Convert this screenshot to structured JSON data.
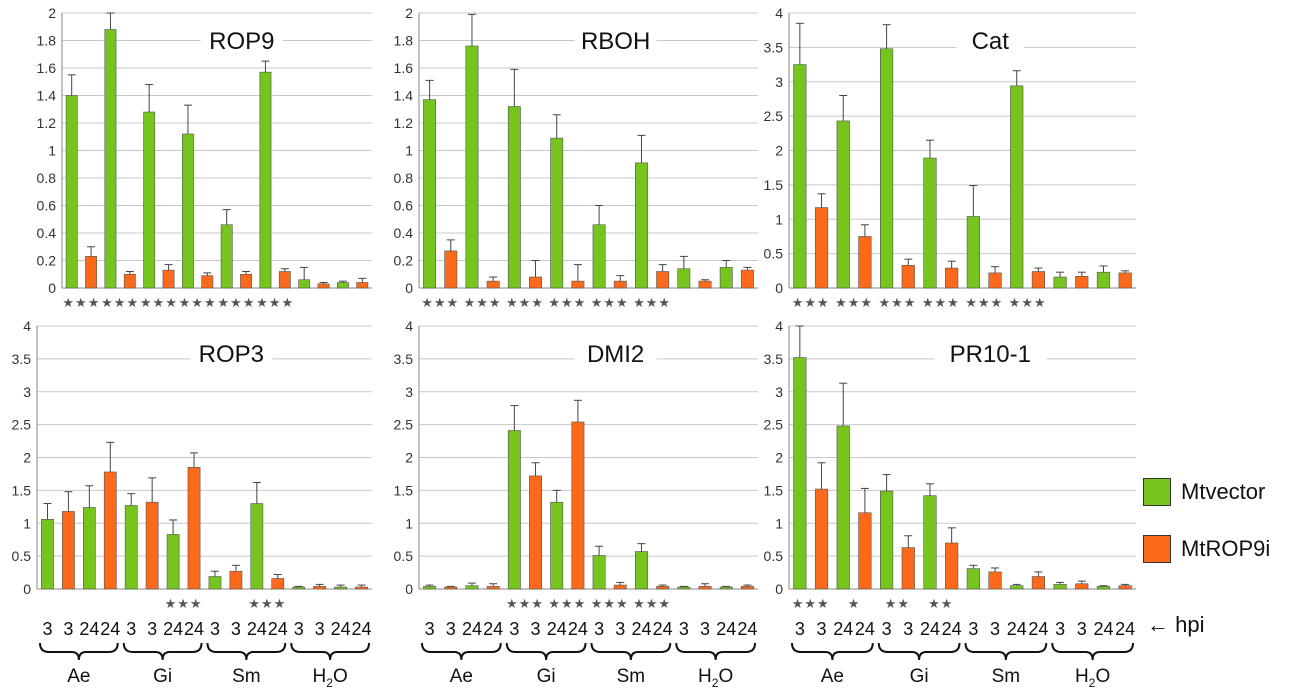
{
  "colors": {
    "mtvector": "#76c41e",
    "mtrop9i": "#fb6a1a",
    "grid": "#c8c8c8",
    "error": "#444444"
  },
  "legend": [
    {
      "name": "Mtvector",
      "color": "#76c41e"
    },
    {
      "name": "MtROP9i",
      "color": "#fb6a1a"
    }
  ],
  "hpi_label": "← hpi",
  "hpi_ticks": [
    "3",
    "3",
    "24",
    "24",
    "3",
    "3",
    "24",
    "24",
    "3",
    "3",
    "24",
    "24",
    "3",
    "3",
    "24",
    "24"
  ],
  "groups": [
    {
      "label": "Ae"
    },
    {
      "label": "Gi"
    },
    {
      "label": "Sm"
    },
    {
      "label": "H",
      "sub": "2",
      "tail": "O"
    }
  ],
  "chart_data": [
    {
      "type": "bar",
      "title": "ROP9",
      "ylim": [
        0,
        2
      ],
      "yticks": [
        "0",
        "0.2",
        "0.4",
        "0.6",
        "0.8",
        "1",
        "1.2",
        "1.4",
        "1.6",
        "1.8",
        "2"
      ],
      "ytick_values": [
        0,
        0.2,
        0.4,
        0.6,
        0.8,
        1,
        1.2,
        1.4,
        1.6,
        1.8,
        2
      ],
      "series_order": [
        "Mtvector",
        "MtROP9i",
        "Mtvector",
        "MtROP9i",
        "Mtvector",
        "MtROP9i",
        "Mtvector",
        "MtROP9i",
        "Mtvector",
        "MtROP9i",
        "Mtvector",
        "MtROP9i",
        "Mtvector",
        "MtROP9i",
        "Mtvector",
        "MtROP9i"
      ],
      "values": [
        1.4,
        0.23,
        1.88,
        0.1,
        1.28,
        0.13,
        1.12,
        0.09,
        0.46,
        0.1,
        1.57,
        0.12,
        0.06,
        0.03,
        0.04,
        0.04
      ],
      "errors": [
        0.15,
        0.07,
        0.12,
        0.02,
        0.2,
        0.04,
        0.21,
        0.02,
        0.11,
        0.02,
        0.08,
        0.02,
        0.09,
        0.01,
        0.01,
        0.03
      ],
      "significance": [
        "★★★",
        "★★★",
        "★★★",
        "★★★",
        "★★★",
        "★★★",
        "",
        ""
      ]
    },
    {
      "type": "bar",
      "title": "RBOH",
      "ylim": [
        0,
        2
      ],
      "yticks": [
        "0",
        "0.2",
        "0.4",
        "0.6",
        "0.8",
        "1",
        "1.2",
        "1.4",
        "1.6",
        "1.8",
        "2"
      ],
      "ytick_values": [
        0,
        0.2,
        0.4,
        0.6,
        0.8,
        1,
        1.2,
        1.4,
        1.6,
        1.8,
        2
      ],
      "series_order": [
        "Mtvector",
        "MtROP9i",
        "Mtvector",
        "MtROP9i",
        "Mtvector",
        "MtROP9i",
        "Mtvector",
        "MtROP9i",
        "Mtvector",
        "MtROP9i",
        "Mtvector",
        "MtROP9i",
        "Mtvector",
        "MtROP9i",
        "Mtvector",
        "MtROP9i"
      ],
      "values": [
        1.37,
        0.27,
        1.76,
        0.05,
        1.32,
        0.08,
        1.09,
        0.05,
        0.46,
        0.05,
        0.91,
        0.12,
        0.14,
        0.05,
        0.15,
        0.13
      ],
      "errors": [
        0.14,
        0.08,
        0.23,
        0.03,
        0.27,
        0.12,
        0.17,
        0.12,
        0.14,
        0.04,
        0.2,
        0.05,
        0.09,
        0.01,
        0.05,
        0.02
      ],
      "significance": [
        "★★★",
        "★★★",
        "★★★",
        "★★★",
        "★★★",
        "★★★",
        "",
        ""
      ]
    },
    {
      "type": "bar",
      "title": "Cat",
      "ylim": [
        0,
        4
      ],
      "yticks": [
        "0",
        "0.5",
        "1",
        "1.5",
        "2",
        "2.5",
        "3",
        "3.5",
        "4"
      ],
      "ytick_values": [
        0,
        0.5,
        1,
        1.5,
        2,
        2.5,
        3,
        3.5,
        4
      ],
      "series_order": [
        "Mtvector",
        "MtROP9i",
        "Mtvector",
        "MtROP9i",
        "Mtvector",
        "MtROP9i",
        "Mtvector",
        "MtROP9i",
        "Mtvector",
        "MtROP9i",
        "Mtvector",
        "MtROP9i",
        "Mtvector",
        "MtROP9i",
        "Mtvector",
        "MtROP9i"
      ],
      "values": [
        3.25,
        1.17,
        2.43,
        0.75,
        3.48,
        0.33,
        1.89,
        0.29,
        1.04,
        0.22,
        2.94,
        0.24,
        0.16,
        0.17,
        0.23,
        0.22
      ],
      "errors": [
        0.6,
        0.2,
        0.37,
        0.17,
        0.35,
        0.09,
        0.26,
        0.1,
        0.45,
        0.09,
        0.22,
        0.05,
        0.07,
        0.06,
        0.09,
        0.03
      ],
      "significance": [
        "★★★",
        "★★★",
        "★★★",
        "★★★",
        "★★★",
        "★★★",
        "",
        ""
      ]
    },
    {
      "type": "bar",
      "title": "ROP3",
      "ylim": [
        0,
        4
      ],
      "yticks": [
        "0",
        "0.5",
        "1",
        "1.5",
        "2",
        "2.5",
        "3",
        "3.5",
        "4"
      ],
      "ytick_values": [
        0,
        0.5,
        1,
        1.5,
        2,
        2.5,
        3,
        3.5,
        4
      ],
      "series_order": [
        "Mtvector",
        "MtROP9i",
        "Mtvector",
        "MtROP9i",
        "Mtvector",
        "MtROP9i",
        "Mtvector",
        "MtROP9i",
        "Mtvector",
        "MtROP9i",
        "Mtvector",
        "MtROP9i",
        "Mtvector",
        "MtROP9i",
        "Mtvector",
        "MtROP9i"
      ],
      "values": [
        1.06,
        1.18,
        1.24,
        1.78,
        1.27,
        1.32,
        0.83,
        1.85,
        0.19,
        0.27,
        1.3,
        0.16,
        0.03,
        0.04,
        0.03,
        0.03
      ],
      "errors": [
        0.24,
        0.3,
        0.33,
        0.45,
        0.18,
        0.37,
        0.22,
        0.22,
        0.08,
        0.09,
        0.32,
        0.06,
        0.01,
        0.03,
        0.03,
        0.03
      ],
      "significance": [
        "",
        "",
        "",
        "★★★",
        "",
        "★★★",
        "",
        ""
      ]
    },
    {
      "type": "bar",
      "title": "DMI2",
      "ylim": [
        0,
        4
      ],
      "yticks": [
        "0",
        "0.5",
        "1",
        "1.5",
        "2",
        "2.5",
        "3",
        "3.5",
        "4"
      ],
      "ytick_values": [
        0,
        0.5,
        1,
        1.5,
        2,
        2.5,
        3,
        3.5,
        4
      ],
      "series_order": [
        "Mtvector",
        "MtROP9i",
        "Mtvector",
        "MtROP9i",
        "Mtvector",
        "MtROP9i",
        "Mtvector",
        "MtROP9i",
        "Mtvector",
        "MtROP9i",
        "Mtvector",
        "MtROP9i",
        "Mtvector",
        "MtROP9i",
        "Mtvector",
        "MtROP9i"
      ],
      "values": [
        0.04,
        0.03,
        0.05,
        0.04,
        2.41,
        1.72,
        1.32,
        2.54,
        0.51,
        0.06,
        0.57,
        0.04,
        0.03,
        0.04,
        0.03,
        0.04
      ],
      "errors": [
        0.02,
        0.01,
        0.04,
        0.04,
        0.38,
        0.2,
        0.18,
        0.33,
        0.14,
        0.04,
        0.12,
        0.02,
        0.01,
        0.04,
        0.01,
        0.02
      ],
      "significance": [
        "",
        "",
        "★★★",
        "★★★",
        "★★★",
        "★★★",
        "",
        ""
      ]
    },
    {
      "type": "bar",
      "title": "PR10-1",
      "ylim": [
        0,
        4
      ],
      "yticks": [
        "0",
        "0.5",
        "1",
        "1.5",
        "2",
        "2.5",
        "3",
        "3.5",
        "4"
      ],
      "ytick_values": [
        0,
        0.5,
        1,
        1.5,
        2,
        2.5,
        3,
        3.5,
        4
      ],
      "series_order": [
        "Mtvector",
        "MtROP9i",
        "Mtvector",
        "MtROP9i",
        "Mtvector",
        "MtROP9i",
        "Mtvector",
        "MtROP9i",
        "Mtvector",
        "MtROP9i",
        "Mtvector",
        "MtROP9i",
        "Mtvector",
        "MtROP9i",
        "Mtvector",
        "MtROP9i"
      ],
      "values": [
        3.52,
        1.52,
        2.48,
        1.16,
        1.49,
        0.63,
        1.42,
        0.7,
        0.31,
        0.26,
        0.05,
        0.19,
        0.07,
        0.08,
        0.04,
        0.05
      ],
      "errors": [
        0.48,
        0.4,
        0.65,
        0.37,
        0.25,
        0.18,
        0.18,
        0.23,
        0.05,
        0.06,
        0.02,
        0.07,
        0.03,
        0.04,
        0.01,
        0.02
      ],
      "significance": [
        "★★★",
        "★",
        "★★",
        "★★",
        "",
        "",
        "",
        ""
      ]
    }
  ]
}
